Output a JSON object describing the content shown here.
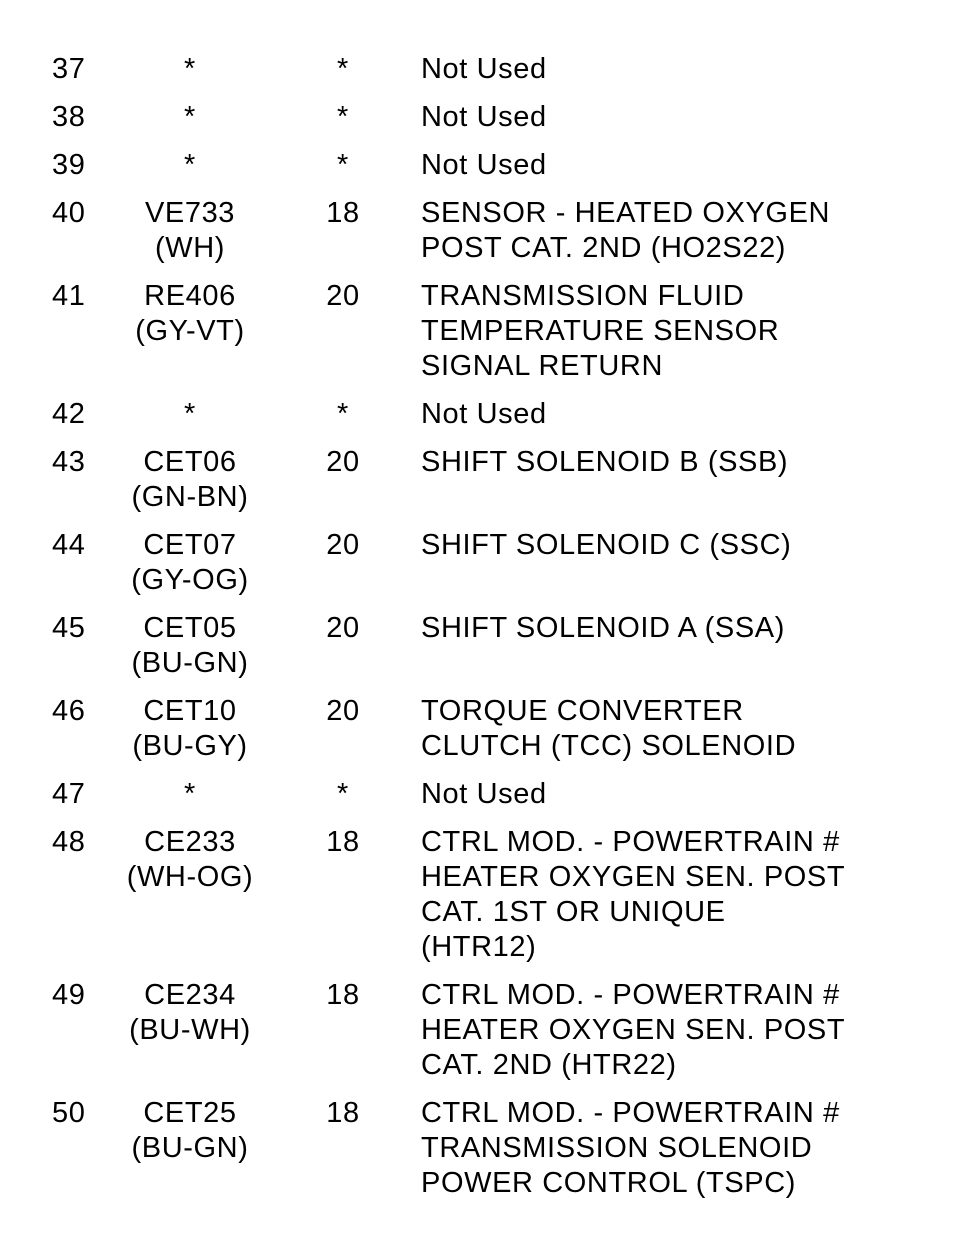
{
  "rows": [
    {
      "pin": "37",
      "circuit": [
        "*"
      ],
      "gauge": "*",
      "description": [
        "Not Used"
      ]
    },
    {
      "pin": "38",
      "circuit": [
        "*"
      ],
      "gauge": "*",
      "description": [
        "Not Used"
      ]
    },
    {
      "pin": "39",
      "circuit": [
        "*"
      ],
      "gauge": "*",
      "description": [
        "Not Used"
      ]
    },
    {
      "pin": "40",
      "circuit": [
        "VE733",
        "(WH)"
      ],
      "gauge": "18",
      "description": [
        "SENSOR - HEATED OXYGEN",
        "POST CAT. 2ND (HO2S22)"
      ]
    },
    {
      "pin": "41",
      "circuit": [
        "RE406",
        "(GY-VT)"
      ],
      "gauge": "20",
      "description": [
        "TRANSMISSION FLUID",
        "TEMPERATURE SENSOR",
        "SIGNAL RETURN"
      ]
    },
    {
      "pin": "42",
      "circuit": [
        "*"
      ],
      "gauge": "*",
      "description": [
        "Not Used"
      ]
    },
    {
      "pin": "43",
      "circuit": [
        "CET06",
        "(GN-BN)"
      ],
      "gauge": "20",
      "description": [
        "SHIFT SOLENOID B (SSB)"
      ]
    },
    {
      "pin": "44",
      "circuit": [
        "CET07",
        "(GY-OG)"
      ],
      "gauge": "20",
      "description": [
        "SHIFT SOLENOID C (SSC)"
      ]
    },
    {
      "pin": "45",
      "circuit": [
        "CET05",
        "(BU-GN)"
      ],
      "gauge": "20",
      "description": [
        "SHIFT SOLENOID A (SSA)"
      ]
    },
    {
      "pin": "46",
      "circuit": [
        "CET10",
        "(BU-GY)"
      ],
      "gauge": "20",
      "description": [
        "TORQUE CONVERTER",
        "CLUTCH (TCC) SOLENOID"
      ]
    },
    {
      "pin": "47",
      "circuit": [
        "*"
      ],
      "gauge": "*",
      "description": [
        "Not Used"
      ]
    },
    {
      "pin": "48",
      "circuit": [
        "CE233",
        "(WH-OG)"
      ],
      "gauge": "18",
      "description": [
        "CTRL MOD. - POWERTRAIN #",
        "HEATER OXYGEN SEN. POST",
        "CAT. 1ST OR UNIQUE",
        "(HTR12)"
      ]
    },
    {
      "pin": "49",
      "circuit": [
        "CE234",
        "(BU-WH)"
      ],
      "gauge": "18",
      "description": [
        "CTRL MOD. - POWERTRAIN #",
        "HEATER OXYGEN SEN. POST",
        "CAT. 2ND (HTR22)"
      ]
    },
    {
      "pin": "50",
      "circuit": [
        "CET25",
        "(BU-GN)"
      ],
      "gauge": "18",
      "description": [
        "CTRL MOD. - POWERTRAIN #",
        "TRANSMISSION SOLENOID",
        "POWER CONTROL (TSPC)"
      ]
    }
  ]
}
